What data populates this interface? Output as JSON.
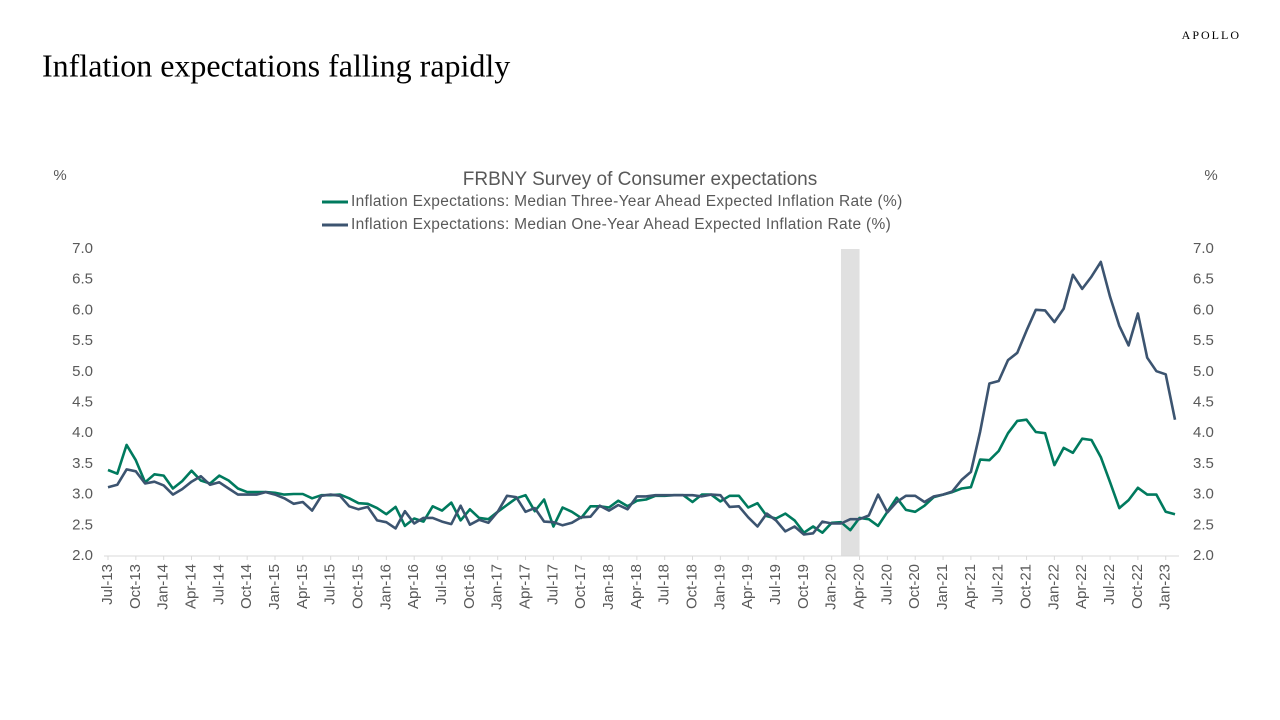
{
  "header": {
    "title": "Inflation expectations falling rapidly",
    "brand": "APOLLO"
  },
  "chart_data": {
    "type": "line",
    "title": "FRBNY Survey of Consumer expectations",
    "y_label": "%",
    "y2_label": "%",
    "categories": [
      "Jul-13",
      null,
      null,
      "Oct-13",
      null,
      null,
      "Jan-14",
      null,
      null,
      "Apr-14",
      null,
      null,
      "Jul-14",
      null,
      null,
      "Oct-14",
      null,
      null,
      "Jan-15",
      null,
      null,
      "Apr-15",
      null,
      null,
      "Jul-15",
      null,
      null,
      "Oct-15",
      null,
      null,
      "Jan-16",
      null,
      null,
      "Apr-16",
      null,
      null,
      "Jul-16",
      null,
      null,
      "Oct-16",
      null,
      null,
      "Jan-17",
      null,
      null,
      "Apr-17",
      null,
      null,
      "Jul-17",
      null,
      null,
      "Oct-17",
      null,
      null,
      "Jan-18",
      null,
      null,
      "Apr-18",
      null,
      null,
      "Jul-18",
      null,
      null,
      "Oct-18",
      null,
      null,
      "Jan-19",
      null,
      null,
      "Apr-19",
      null,
      null,
      "Jul-19",
      null,
      null,
      "Oct-19",
      null,
      null,
      "Jan-20",
      null,
      null,
      "Apr-20",
      null,
      null,
      "Jul-20",
      null,
      null,
      "Oct-20",
      null,
      null,
      "Jan-21",
      null,
      null,
      "Apr-21",
      null,
      null,
      "Jul-21",
      null,
      null,
      "Oct-21",
      null,
      null,
      "Jan-22",
      null,
      null,
      "Apr-22",
      null,
      null,
      "Jul-22",
      null,
      null,
      "Oct-22",
      null,
      null,
      "Jan-23",
      null
    ],
    "series": [
      {
        "name": "Inflation Expectations: Median Three-Year Ahead Expected Inflation Rate (%)",
        "color": "#007a5e",
        "values": [
          3.4,
          3.34,
          3.81,
          3.56,
          3.2,
          3.33,
          3.31,
          3.1,
          3.22,
          3.39,
          3.23,
          3.18,
          3.31,
          3.23,
          3.1,
          3.04,
          3.04,
          3.04,
          3.03,
          3.0,
          3.01,
          3.01,
          2.94,
          2.99,
          2.99,
          3.0,
          2.94,
          2.86,
          2.85,
          2.78,
          2.68,
          2.8,
          2.49,
          2.61,
          2.56,
          2.81,
          2.74,
          2.87,
          2.58,
          2.76,
          2.62,
          2.6,
          2.72,
          2.83,
          2.94,
          2.99,
          2.73,
          2.92,
          2.48,
          2.79,
          2.72,
          2.62,
          2.81,
          2.81,
          2.79,
          2.9,
          2.81,
          2.9,
          2.92,
          2.98,
          2.98,
          2.99,
          2.99,
          2.88,
          3.0,
          3.0,
          2.89,
          2.98,
          2.98,
          2.79,
          2.86,
          2.65,
          2.61,
          2.69,
          2.58,
          2.38,
          2.48,
          2.38,
          2.54,
          2.55,
          2.42,
          2.62,
          2.6,
          2.49,
          2.72,
          2.95,
          2.75,
          2.72,
          2.82,
          2.96,
          3.0,
          3.04,
          3.1,
          3.12,
          3.57,
          3.56,
          3.71,
          4.0,
          4.2,
          4.22,
          4.02,
          4.0,
          3.48,
          3.76,
          3.68,
          3.91,
          3.89,
          3.61,
          3.2,
          2.78,
          2.91,
          3.11,
          3.0,
          3.0,
          2.72,
          2.68
        ]
      },
      {
        "name": "Inflation Expectations: Median One-Year Ahead Expected Inflation Rate (%)",
        "color": "#3c5470",
        "values": [
          3.12,
          3.16,
          3.41,
          3.38,
          3.18,
          3.21,
          3.15,
          3.0,
          3.09,
          3.21,
          3.3,
          3.16,
          3.2,
          3.1,
          3.0,
          3.0,
          3.0,
          3.04,
          3.0,
          2.94,
          2.85,
          2.88,
          2.74,
          2.98,
          3.0,
          2.98,
          2.81,
          2.76,
          2.8,
          2.58,
          2.55,
          2.45,
          2.73,
          2.53,
          2.62,
          2.62,
          2.56,
          2.52,
          2.82,
          2.51,
          2.59,
          2.54,
          2.72,
          2.98,
          2.96,
          2.72,
          2.78,
          2.56,
          2.55,
          2.5,
          2.54,
          2.63,
          2.64,
          2.82,
          2.74,
          2.83,
          2.76,
          2.97,
          2.97,
          2.99,
          2.99,
          2.99,
          2.99,
          2.99,
          2.97,
          3.0,
          2.99,
          2.8,
          2.81,
          2.63,
          2.48,
          2.69,
          2.58,
          2.4,
          2.48,
          2.35,
          2.37,
          2.56,
          2.53,
          2.53,
          2.6,
          2.6,
          2.66,
          3.0,
          2.71,
          2.88,
          2.98,
          2.98,
          2.88,
          2.97,
          3.0,
          3.05,
          3.24,
          3.37,
          4.03,
          4.81,
          4.85,
          5.19,
          5.31,
          5.67,
          6.01,
          6.0,
          5.81,
          6.03,
          6.58,
          6.35,
          6.55,
          6.79,
          6.22,
          5.75,
          5.43,
          5.95,
          5.23,
          5.01,
          4.96,
          4.22
        ]
      }
    ],
    "shaded_span": [
      79,
      81
    ],
    "shade_color": "#e0e0e0",
    "ylim": [
      2,
      7
    ],
    "yticks": [
      {
        "value": 2,
        "label": "2.0"
      },
      {
        "value": 2.5,
        "label": "2.5"
      },
      {
        "value": 3,
        "label": "3.0"
      },
      {
        "value": 3.5,
        "label": "3.5"
      },
      {
        "value": 4,
        "label": "4.0"
      },
      {
        "value": 4.5,
        "label": "4.5"
      },
      {
        "value": 5,
        "label": "5.0"
      },
      {
        "value": 5.5,
        "label": "5.5"
      },
      {
        "value": 6,
        "label": "6.0"
      },
      {
        "value": 6.5,
        "label": "6.5"
      },
      {
        "value": 7,
        "label": "7.0"
      }
    ],
    "y2lim": [
      2,
      7
    ],
    "y2ticks": [
      {
        "value": 2,
        "label": "2.0"
      },
      {
        "value": 2.5,
        "label": "2.5"
      },
      {
        "value": 3,
        "label": "3.0"
      },
      {
        "value": 3.5,
        "label": "3.5"
      },
      {
        "value": 4,
        "label": "4.0"
      },
      {
        "value": 4.5,
        "label": "4.5"
      },
      {
        "value": 5,
        "label": "5.0"
      },
      {
        "value": 5.5,
        "label": "5.5"
      },
      {
        "value": 6,
        "label": "6.0"
      },
      {
        "value": 6.5,
        "label": "6.5"
      },
      {
        "value": 7,
        "label": "7.0"
      }
    ],
    "grid": false,
    "legend": "top"
  }
}
